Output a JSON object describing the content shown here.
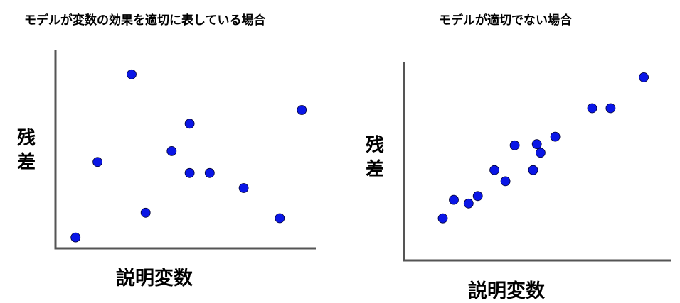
{
  "colors": {
    "point": "#0a16e6",
    "axis": "#555555",
    "text": "#000000"
  },
  "chart_data": [
    {
      "type": "scatter",
      "title": "モデルが変数の効果を適切に表している場合",
      "xlabel": "説明変数",
      "ylabel": "残差",
      "grid": false,
      "series": [
        {
          "values": [
            {
              "x": 1.0,
              "y": 0.3
            },
            {
              "x": 2.1,
              "y": 5.8
            },
            {
              "x": 3.8,
              "y": 12.2
            },
            {
              "x": 4.5,
              "y": 2.1
            },
            {
              "x": 5.8,
              "y": 6.6
            },
            {
              "x": 6.7,
              "y": 8.6
            },
            {
              "x": 6.7,
              "y": 5.0
            },
            {
              "x": 7.7,
              "y": 5.0
            },
            {
              "x": 9.4,
              "y": 3.9
            },
            {
              "x": 11.2,
              "y": 1.7
            },
            {
              "x": 12.3,
              "y": 9.6
            }
          ]
        }
      ],
      "xlim": [
        0,
        13
      ],
      "ylim": [
        -0.5,
        14
      ]
    },
    {
      "type": "scatter",
      "title": "モデルが適切でない場合",
      "xlabel": "説明変数",
      "ylabel": "残差",
      "grid": false,
      "series": [
        {
          "values": [
            {
              "x": 2.1,
              "y": 3.4
            },
            {
              "x": 2.7,
              "y": 4.9
            },
            {
              "x": 3.5,
              "y": 4.6
            },
            {
              "x": 4.0,
              "y": 5.2
            },
            {
              "x": 4.9,
              "y": 7.3
            },
            {
              "x": 5.5,
              "y": 6.4
            },
            {
              "x": 6.0,
              "y": 9.3
            },
            {
              "x": 7.0,
              "y": 7.3
            },
            {
              "x": 7.2,
              "y": 9.4
            },
            {
              "x": 7.4,
              "y": 8.7
            },
            {
              "x": 8.2,
              "y": 10.0
            },
            {
              "x": 10.2,
              "y": 12.3
            },
            {
              "x": 11.2,
              "y": 12.3
            },
            {
              "x": 13.0,
              "y": 14.8
            }
          ]
        }
      ],
      "xlim": [
        0,
        14.5
      ],
      "ylim": [
        0,
        16
      ]
    }
  ]
}
